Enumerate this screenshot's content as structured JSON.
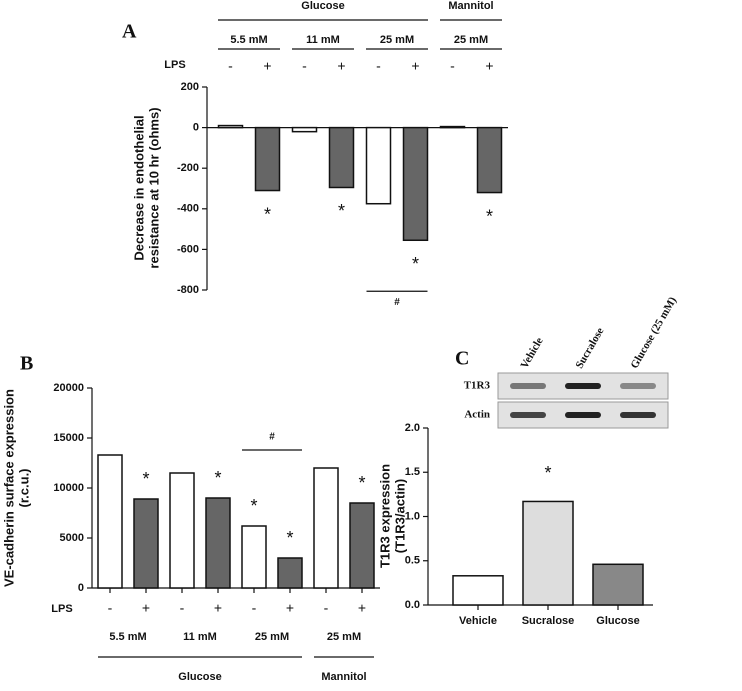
{
  "chart_data": [
    {
      "type": "bar",
      "panel": "A",
      "ylabel": [
        "Decrease in endothelial",
        "resistance at 10 hr (ohms)"
      ],
      "category_label": "LPS",
      "categories": [
        "-",
        "+",
        "-",
        "+",
        "-",
        "+",
        "-",
        "+"
      ],
      "values": [
        10,
        -310,
        -20,
        -295,
        -375,
        -555,
        5,
        -320
      ],
      "colors": [
        "#ffffff",
        "#666666",
        "#ffffff",
        "#666666",
        "#ffffff",
        "#666666",
        "#ffffff",
        "#666666"
      ],
      "markers": [
        null,
        "*",
        null,
        "*",
        null,
        "*",
        null,
        "*"
      ],
      "comparison": {
        "text": "#",
        "between": [
          4,
          5
        ]
      },
      "groups": [
        {
          "label": "5.5 mM",
          "size": 2
        },
        {
          "label": "11 mM",
          "size": 2
        },
        {
          "label": "25 mM",
          "size": 2
        },
        {
          "label": "25 mM",
          "size": 2
        }
      ],
      "supergroups": [
        {
          "label": "Glucose",
          "size": 3
        },
        {
          "label": "Mannitol",
          "size": 1
        }
      ],
      "ylim": [
        -800,
        200
      ],
      "yticks": [
        200,
        0,
        -200,
        -400,
        -600,
        -800
      ]
    },
    {
      "type": "bar",
      "panel": "B",
      "ylabel": [
        "VE-cadherin surface expression",
        "(r.c.u.)"
      ],
      "category_label": "LPS",
      "categories": [
        "-",
        "+",
        "-",
        "+",
        "-",
        "+",
        "-",
        "+"
      ],
      "values": [
        13300,
        8900,
        11500,
        9000,
        6200,
        3000,
        12000,
        8500
      ],
      "colors": [
        "#ffffff",
        "#666666",
        "#ffffff",
        "#666666",
        "#ffffff",
        "#666666",
        "#ffffff",
        "#666666"
      ],
      "markers": [
        null,
        "*",
        null,
        "*",
        "*",
        "*",
        null,
        "*"
      ],
      "comparison": {
        "text": "#",
        "between": [
          4,
          5
        ]
      },
      "groups": [
        {
          "label": "5.5 mM",
          "size": 2
        },
        {
          "label": "11 mM",
          "size": 2
        },
        {
          "label": "25 mM",
          "size": 2
        },
        {
          "label": "25 mM",
          "size": 2
        }
      ],
      "supergroups": [
        {
          "label": "Glucose",
          "size": 3
        },
        {
          "label": "Mannitol",
          "size": 1
        }
      ],
      "ylim": [
        0,
        20000
      ],
      "yticks": [
        0,
        5000,
        10000,
        15000,
        20000
      ]
    },
    {
      "type": "bar",
      "panel": "C",
      "ylabel": [
        "T1R3 expression",
        "(T1R3/actin)"
      ],
      "categories": [
        "Vehicle",
        "Sucralose",
        "Glucose"
      ],
      "values": [
        0.33,
        1.17,
        0.46
      ],
      "colors": [
        "#ffffff",
        "#dddddd",
        "#888888"
      ],
      "markers": [
        null,
        "*",
        null
      ],
      "blot": {
        "lanes": [
          "Vehicle",
          "Sucralose",
          "Glucose (25 mM)"
        ],
        "rows": [
          "T1R3",
          "Actin"
        ]
      },
      "ylim": [
        0,
        2
      ],
      "yticks": [
        {
          "value": 0,
          "label": "0.0"
        },
        {
          "value": 0.5,
          "label": "0.5"
        },
        {
          "value": 1,
          "label": "1.0"
        },
        {
          "value": 1.5,
          "label": "1.5"
        },
        {
          "value": 2,
          "label": "2.0"
        }
      ]
    }
  ]
}
